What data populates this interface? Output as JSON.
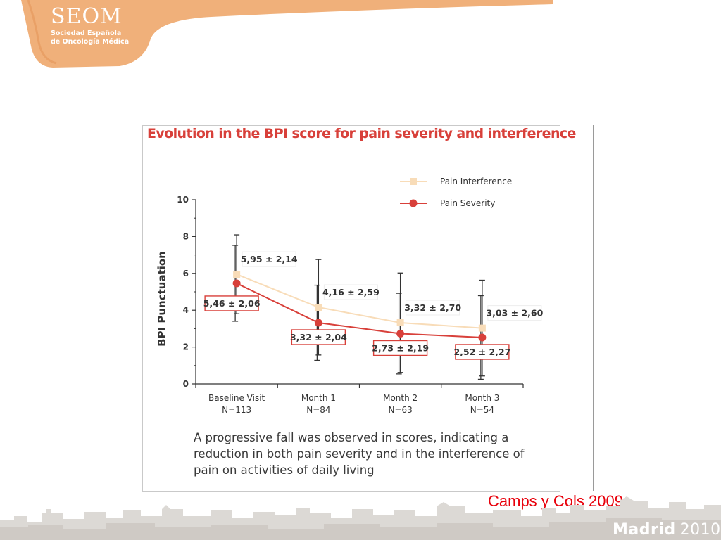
{
  "header": {
    "logo_title": "SEOM",
    "logo_subtitle_line1": "Sociedad Española",
    "logo_subtitle_line2": "de Oncología Médica"
  },
  "colors": {
    "brand_orange": "#f0b07a",
    "severity": "#d8403a",
    "interference": "#f8dcb8",
    "citation": "#e8000b"
  },
  "chart_data": {
    "type": "line",
    "title": "Evolution in the BPI score for pain severity and interference",
    "xlabel": "",
    "ylabel": "BPI Punctuation",
    "ylim": [
      0,
      10
    ],
    "yticks": [
      "0",
      "2",
      "4",
      "6",
      "8",
      "10"
    ],
    "categories": [
      "Baseline Visit",
      "Month 1",
      "Month 2",
      "Month 3"
    ],
    "category_n": [
      "N=113",
      "N=84",
      "N=63",
      "N=54"
    ],
    "legend_position": "top-right",
    "series": [
      {
        "name": "Pain Interference",
        "marker": "square",
        "color": "#f8dcb8",
        "values": [
          5.95,
          4.16,
          3.32,
          3.03
        ],
        "sd": [
          2.14,
          2.59,
          2.7,
          2.6
        ],
        "labels": [
          "5,95 ± 2,14",
          "4,16 ± 2,59",
          "3,32 ± 2,70",
          "3,03 ± 2,60"
        ]
      },
      {
        "name": "Pain Severity",
        "marker": "circle",
        "color": "#d8403a",
        "values": [
          5.46,
          3.32,
          2.73,
          2.52
        ],
        "sd": [
          2.06,
          2.04,
          2.19,
          2.27
        ],
        "labels": [
          "5,46 ± 2,06",
          "3,32 ± 2,04",
          "2,73 ± 2,19",
          "2,52 ± 2,27"
        ]
      }
    ],
    "caption": "A progressive fall was observed in scores, indicating a reduction in both pain severity and in the interference of pain on activities of daily living"
  },
  "citation": "Camps y Cols 2009",
  "footer": {
    "city": "Madrid",
    "year": "2010"
  }
}
